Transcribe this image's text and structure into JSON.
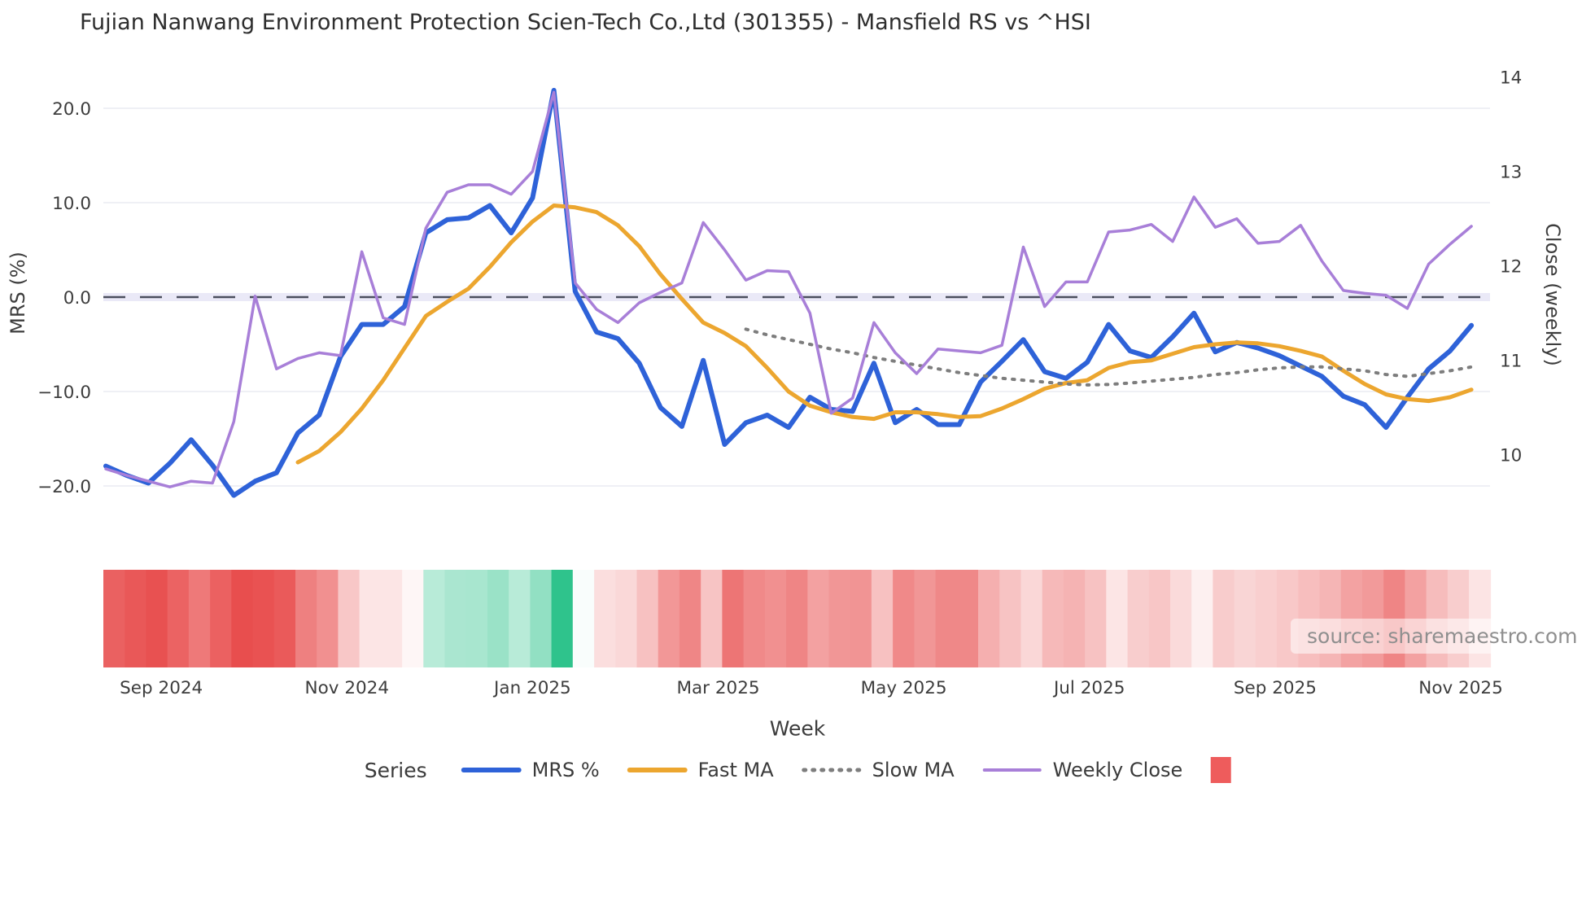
{
  "chart_data": {
    "type": "line",
    "title": "Fujian Nanwang Environment Protection Scien-Tech Co.,Ltd (301355) - Mansfield RS vs ^HSI",
    "legend_title": "Series",
    "watermark": "source: sharemaestro.com",
    "x_axis": {
      "label": "Week",
      "ticks": [
        {
          "label": "Sep 2024",
          "index": 2.6
        },
        {
          "label": "Nov 2024",
          "index": 11.3
        },
        {
          "label": "Jan 2025",
          "index": 20.0
        },
        {
          "label": "Mar 2025",
          "index": 28.7
        },
        {
          "label": "May 2025",
          "index": 37.4
        },
        {
          "label": "Jul 2025",
          "index": 46.1
        },
        {
          "label": "Sep 2025",
          "index": 54.8
        },
        {
          "label": "Nov 2025",
          "index": 63.5
        }
      ]
    },
    "y_left": {
      "label": "MRS (%)",
      "ticks": [
        {
          "label": "20.0",
          "value": 20
        },
        {
          "label": "10.0",
          "value": 10
        },
        {
          "label": "0.0",
          "value": 0
        },
        {
          "label": "−10.0",
          "value": -10
        },
        {
          "label": "−20.0",
          "value": -20
        }
      ],
      "zero_line": 0
    },
    "y_right": {
      "label": "Close (weekly)",
      "ticks": [
        {
          "label": "14",
          "value": 14
        },
        {
          "label": "13",
          "value": 13
        },
        {
          "label": "12",
          "value": 12
        },
        {
          "label": "11",
          "value": 11
        },
        {
          "label": "10",
          "value": 10
        }
      ]
    },
    "series": [
      {
        "name": "MRS %",
        "axis": "left",
        "color": "#2e62d8",
        "width": 6,
        "dash": "solid",
        "start_index": 0,
        "values": [
          -17.9,
          -18.9,
          -19.7,
          -17.6,
          -15.1,
          -17.8,
          -21.0,
          -19.5,
          -18.6,
          -14.4,
          -12.5,
          -6.3,
          -2.9,
          -2.9,
          -1.0,
          6.8,
          8.2,
          8.4,
          9.7,
          6.8,
          10.5,
          21.9,
          0.6,
          -3.7,
          -4.4,
          -7.0,
          -11.7,
          -13.7,
          -6.7,
          -15.6,
          -13.3,
          -12.5,
          -13.8,
          -10.6,
          -11.9,
          -12.1,
          -7.0,
          -13.3,
          -11.9,
          -13.5,
          -13.5,
          -9.0,
          -6.8,
          -4.5,
          -7.9,
          -8.6,
          -6.9,
          -2.9,
          -5.7,
          -6.4,
          -4.2,
          -1.7,
          -5.8,
          -4.8,
          -5.4,
          -6.2,
          -7.3,
          -8.4,
          -10.5,
          -11.4,
          -13.8,
          -10.6,
          -7.6,
          -5.7,
          -3.0
        ]
      },
      {
        "name": "Fast MA",
        "axis": "left",
        "color": "#eca62f",
        "width": 5,
        "dash": "solid",
        "start_index": 9,
        "values": [
          -17.5,
          -16.3,
          -14.3,
          -11.8,
          -8.8,
          -5.4,
          -2.0,
          -0.5,
          0.9,
          3.2,
          5.8,
          8.0,
          9.7,
          9.5,
          9.0,
          7.6,
          5.4,
          2.4,
          -0.2,
          -2.7,
          -3.8,
          -5.2,
          -7.5,
          -10.0,
          -11.5,
          -12.2,
          -12.7,
          -12.9,
          -12.2,
          -12.2,
          -12.4,
          -12.7,
          -12.6,
          -11.8,
          -10.8,
          -9.7,
          -9.1,
          -8.8,
          -7.5,
          -6.9,
          -6.7,
          -6.0,
          -5.3,
          -5.0,
          -4.8,
          -4.9,
          -5.2,
          -5.7,
          -6.3,
          -7.8,
          -9.2,
          -10.3,
          -10.8,
          -11.0,
          -10.6,
          -9.8
        ]
      },
      {
        "name": "Slow MA",
        "axis": "left",
        "color": "#7d7d7d",
        "width": 4,
        "dash": "dotted",
        "start_index": 30,
        "values": [
          -3.4,
          -4.0,
          -4.5,
          -5.0,
          -5.5,
          -5.9,
          -6.4,
          -6.8,
          -7.2,
          -7.6,
          -8.0,
          -8.3,
          -8.6,
          -8.8,
          -9.0,
          -9.2,
          -9.3,
          -9.25,
          -9.1,
          -8.9,
          -8.7,
          -8.5,
          -8.2,
          -8.0,
          -7.7,
          -7.5,
          -7.4,
          -7.4,
          -7.6,
          -7.8,
          -8.2,
          -8.4,
          -8.1,
          -7.8,
          -7.4
        ]
      },
      {
        "name": "Weekly Close",
        "axis": "right",
        "color": "#a87fd8",
        "width": 3.5,
        "dash": "solid",
        "start_index": 0,
        "values": [
          9.85,
          9.78,
          9.72,
          9.66,
          9.72,
          9.7,
          10.35,
          11.68,
          10.91,
          11.02,
          11.08,
          11.05,
          12.15,
          11.45,
          11.38,
          12.4,
          12.78,
          12.86,
          12.86,
          12.76,
          13.0,
          13.84,
          11.82,
          11.54,
          11.4,
          11.61,
          11.72,
          11.82,
          12.46,
          12.17,
          11.85,
          11.95,
          11.94,
          11.5,
          10.44,
          10.6,
          11.4,
          11.08,
          10.86,
          11.12,
          11.1,
          11.08,
          11.16,
          12.2,
          11.57,
          11.83,
          11.83,
          12.36,
          12.38,
          12.44,
          12.26,
          12.73,
          12.41,
          12.5,
          12.24,
          12.26,
          12.43,
          12.05,
          11.74,
          11.71,
          11.69,
          11.55,
          12.02,
          12.23,
          12.42
        ]
      }
    ],
    "heatmap": {
      "source_series": "MRS %",
      "max_abs": 20,
      "positive_color": "#2fc38c",
      "negative_color": "#e84e4e",
      "legend_color": "#ee5c5c"
    },
    "layout_hints": {
      "grid": "horizontal-only",
      "zero_line_style": "dashed",
      "legend_position": "bottom-center",
      "y_left_range": [
        -28.5,
        24.5
      ],
      "y_right_range": [
        9.3,
        14.3
      ]
    }
  }
}
